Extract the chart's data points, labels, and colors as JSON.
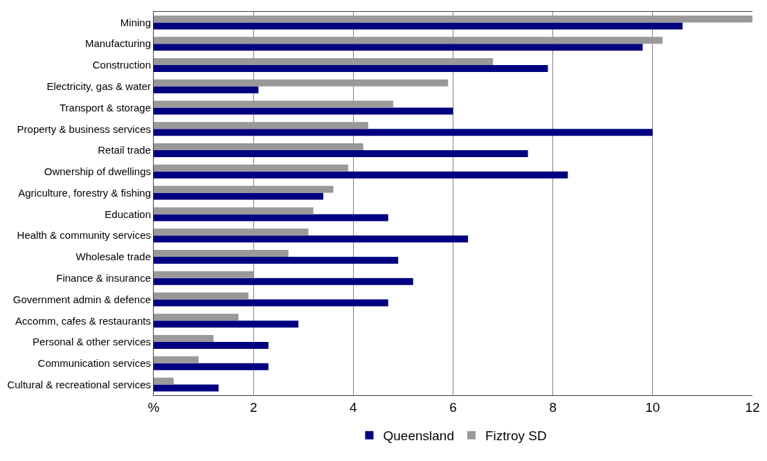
{
  "chart_data": {
    "type": "bar",
    "orientation": "horizontal",
    "categories": [
      "Mining",
      "Manufacturing",
      "Construction",
      "Electricity, gas & water",
      "Transport & storage",
      "Property & business services",
      "Retail trade",
      "Ownership of dwellings",
      "Agriculture, forestry & fishing",
      "Education",
      "Health & community services",
      "Wholesale trade",
      "Finance & insurance",
      "Government admin & defence",
      "Accomm, cafes & restaurants",
      "Personal & other services",
      "Communication services",
      "Cultural & recreational services"
    ],
    "series": [
      {
        "name": "Queensland",
        "color": "#000080",
        "values": [
          10.6,
          9.8,
          7.9,
          2.1,
          6.0,
          10.0,
          7.5,
          8.3,
          3.4,
          4.7,
          6.3,
          4.9,
          5.2,
          4.7,
          2.9,
          2.3,
          2.3,
          1.3
        ]
      },
      {
        "name": "Fiztroy SD",
        "color": "#999999",
        "values": [
          12.0,
          10.2,
          6.8,
          5.9,
          4.8,
          4.3,
          4.2,
          3.9,
          3.6,
          3.2,
          3.1,
          2.7,
          2.0,
          1.9,
          1.7,
          1.2,
          0.9,
          0.4
        ]
      }
    ],
    "xlim": [
      0,
      12
    ],
    "xticks": [
      {
        "value": 0,
        "label": "%"
      },
      2,
      4,
      6,
      8,
      10,
      12
    ],
    "grid": "x",
    "legend": "bottom"
  }
}
